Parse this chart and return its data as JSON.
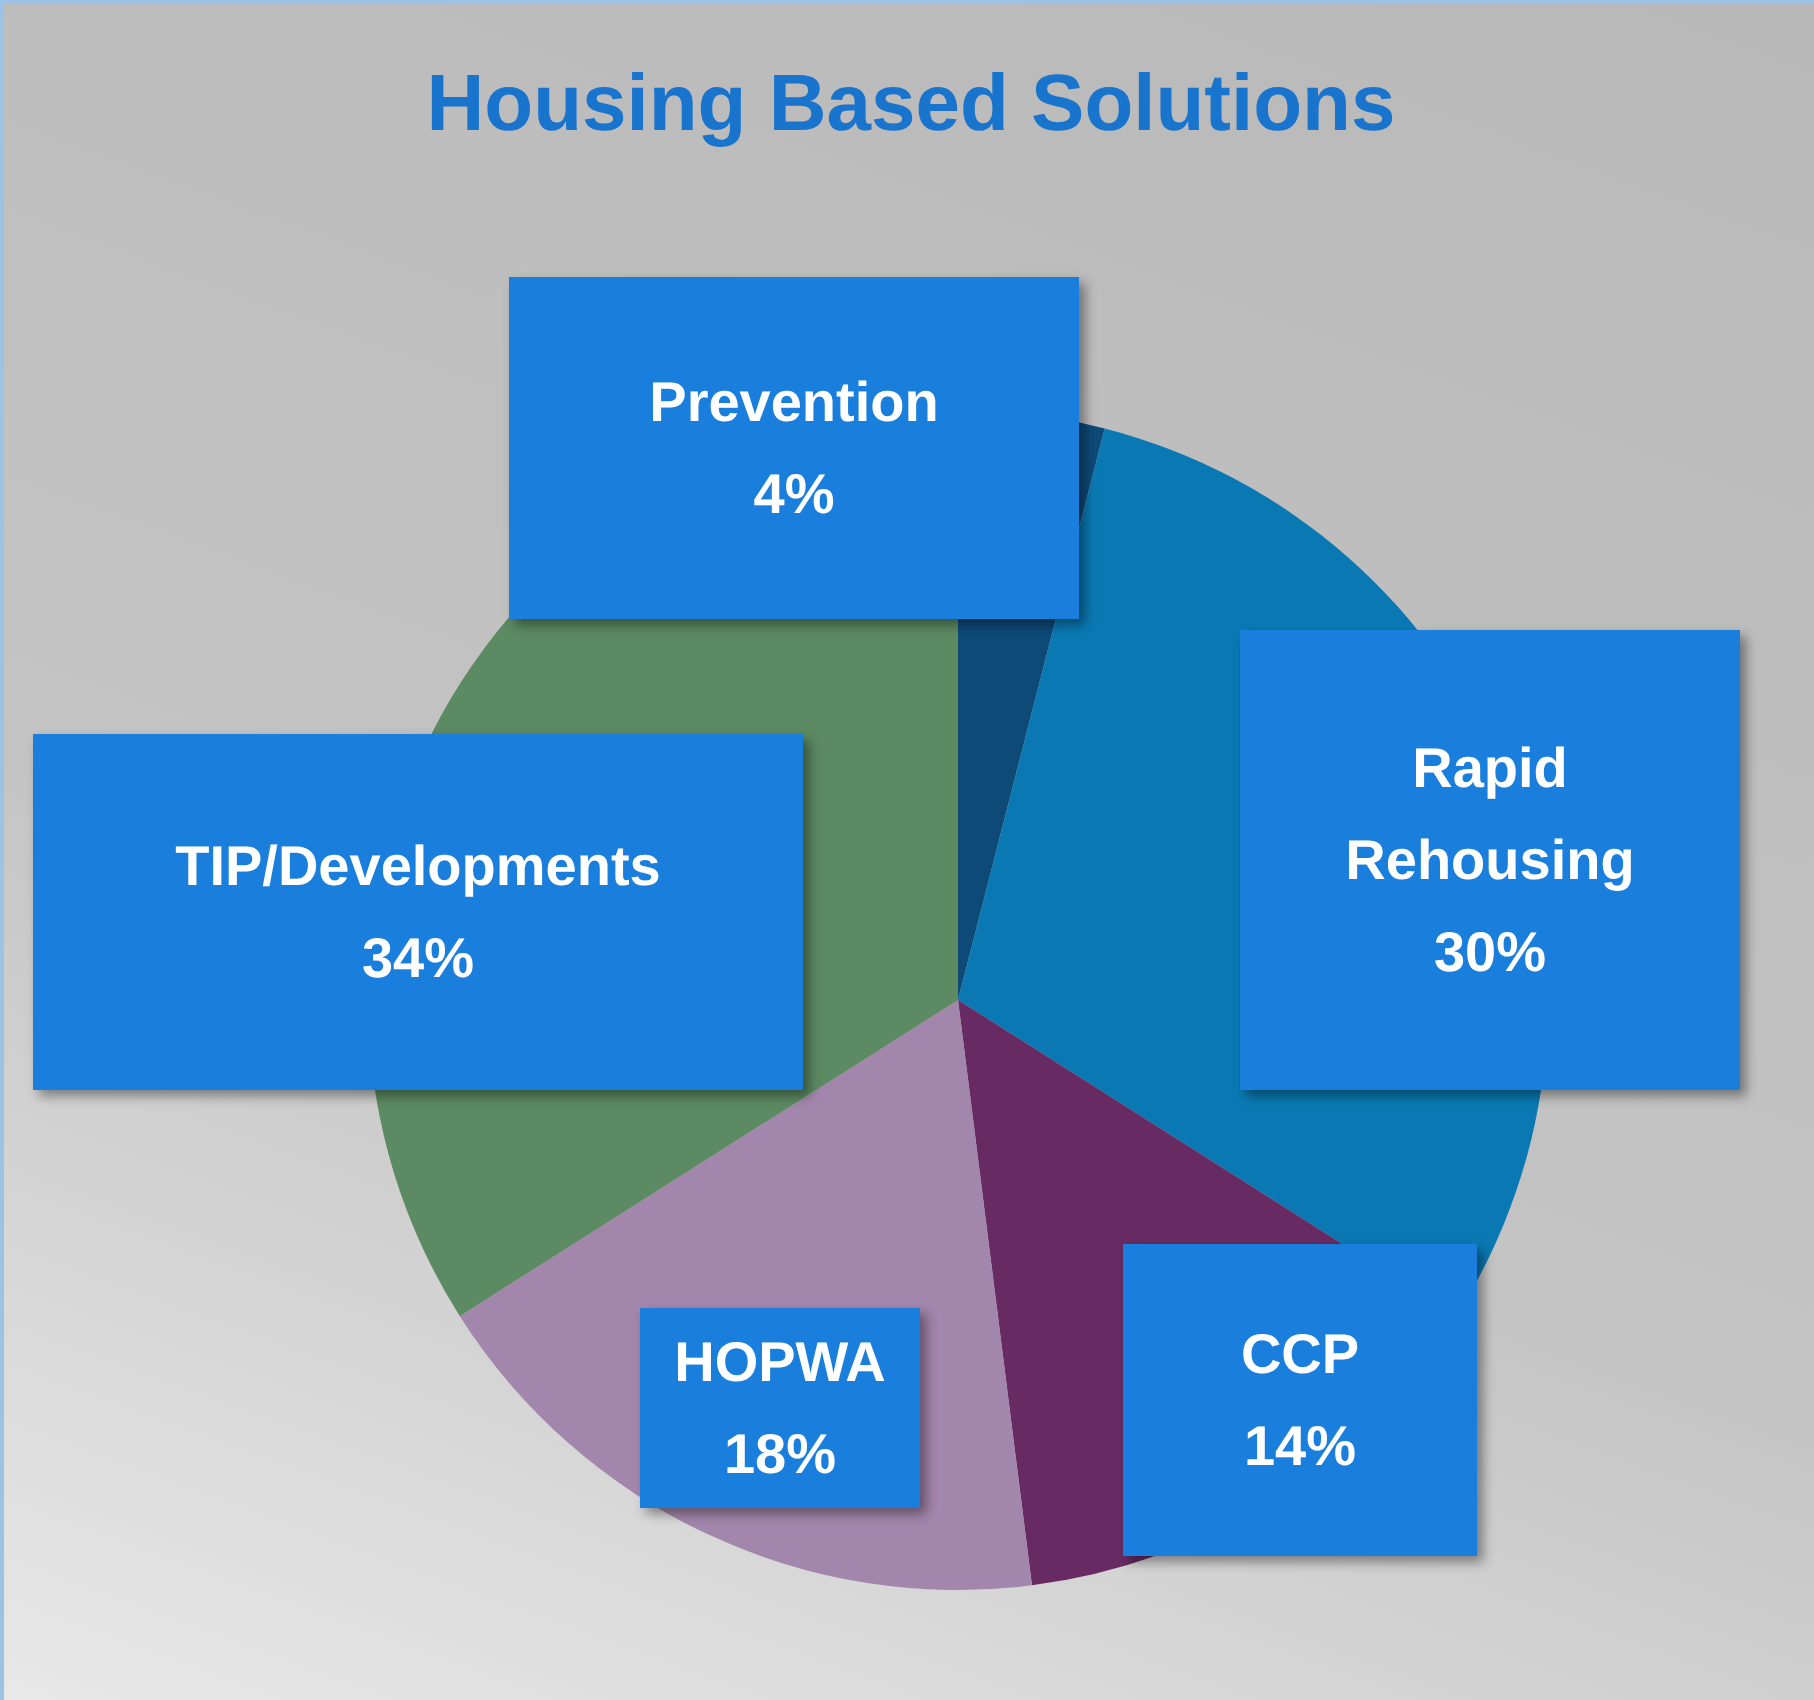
{
  "chart_data": {
    "type": "pie",
    "title": "Housing Based Solutions",
    "categories": [
      "Prevention",
      "Rapid Rehousing",
      "CCP",
      "HOPWA",
      "TIP/Developments"
    ],
    "values": [
      4,
      30,
      14,
      18,
      34
    ],
    "value_labels": [
      "4%",
      "30%",
      "14%",
      "18%",
      "34%"
    ],
    "colors": [
      "#0d4a78",
      "#0a79b3",
      "#682a63",
      "#a386ab",
      "#5c8a62"
    ]
  }
}
